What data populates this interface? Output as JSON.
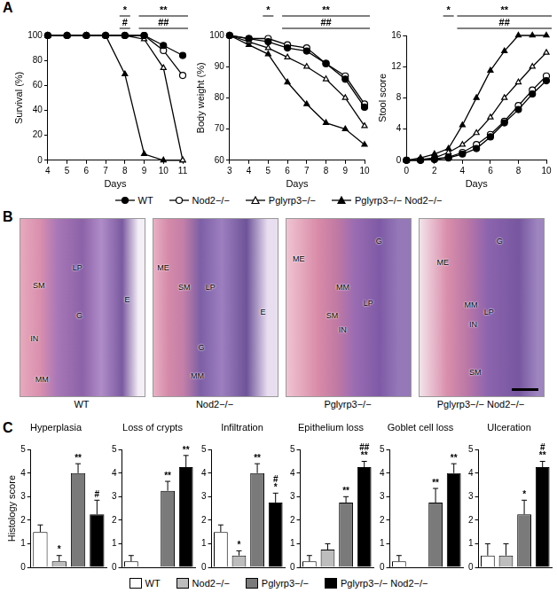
{
  "panel_labels": [
    "A",
    "B",
    "C"
  ],
  "chart_data": [
    {
      "type": "line",
      "x_label": "Days",
      "y_label": "Survival (%)",
      "x": [
        4,
        5,
        6,
        7,
        8,
        9,
        10,
        11
      ],
      "xlim": [
        4,
        11
      ],
      "xticks": [
        4,
        5,
        6,
        7,
        8,
        9,
        10,
        11
      ],
      "ylim": [
        0,
        100
      ],
      "yticks": [
        0,
        20,
        40,
        60,
        80,
        100
      ],
      "grid": false,
      "legend": "bottom",
      "series": [
        {
          "name": "WT",
          "color": "#000000",
          "marker": "circle",
          "values": [
            100,
            100,
            100,
            100,
            100,
            100,
            92,
            84
          ]
        },
        {
          "name": "Nod2−/−",
          "color": "#000000",
          "marker": "open_circle",
          "values": [
            100,
            100,
            100,
            100,
            100,
            100,
            88,
            68
          ]
        },
        {
          "name": "Pglyrp3−/−",
          "color": "#000000",
          "marker": "open_triangle",
          "values": [
            100,
            100,
            100,
            100,
            100,
            97,
            74,
            0
          ]
        },
        {
          "name": "Pglyrp3−/− Nod2−/−",
          "color": "#000000",
          "marker": "triangle",
          "values": [
            100,
            100,
            100,
            100,
            69,
            5,
            0,
            0
          ]
        }
      ],
      "significance": [
        {
          "label": "*",
          "from": 8,
          "to": 8
        },
        {
          "label": "**",
          "from": 9,
          "to": 11
        },
        {
          "label": "#",
          "from": 8,
          "to": 8
        },
        {
          "label": "##",
          "from": 9,
          "to": 11
        }
      ]
    },
    {
      "type": "line",
      "x_label": "Days",
      "y_label": "Body weight (%)",
      "x": [
        3,
        4,
        5,
        6,
        7,
        8,
        9,
        10
      ],
      "xlim": [
        3,
        10
      ],
      "xticks": [
        3,
        4,
        5,
        6,
        7,
        8,
        9,
        10
      ],
      "ylim": [
        60,
        100
      ],
      "yticks": [
        60,
        70,
        80,
        90,
        100
      ],
      "grid": false,
      "series": [
        {
          "name": "WT",
          "color": "#000000",
          "marker": "circle",
          "values": [
            100,
            99,
            98,
            96,
            95,
            91,
            86,
            77
          ]
        },
        {
          "name": "Nod2−/−",
          "color": "#000000",
          "marker": "open_circle",
          "values": [
            100,
            99,
            99,
            97,
            96,
            91,
            87,
            78
          ]
        },
        {
          "name": "Pglyrp3−/−",
          "color": "#000000",
          "marker": "open_triangle",
          "values": [
            100,
            98,
            96,
            93,
            90,
            86,
            80,
            71
          ]
        },
        {
          "name": "Pglyrp3−/− Nod2−/−",
          "color": "#000000",
          "marker": "triangle",
          "values": [
            100,
            97,
            94,
            85,
            78,
            72,
            70,
            65
          ]
        }
      ],
      "significance": [
        {
          "label": "*",
          "from": 5,
          "to": 5
        },
        {
          "label": "**",
          "from": 6,
          "to": 10
        },
        {
          "label": "##",
          "from": 6,
          "to": 10
        }
      ]
    },
    {
      "type": "line",
      "x_label": "Days",
      "y_label": "Stool score",
      "x": [
        0,
        1,
        2,
        3,
        4,
        5,
        6,
        7,
        8,
        9,
        10
      ],
      "xlim": [
        0,
        10
      ],
      "xticks": [
        0,
        2,
        4,
        6,
        8,
        10
      ],
      "ylim": [
        0,
        16
      ],
      "yticks": [
        0,
        4,
        8,
        12,
        16
      ],
      "grid": false,
      "series": [
        {
          "name": "WT",
          "color": "#000000",
          "marker": "circle",
          "values": [
            0,
            0,
            0.1,
            0.3,
            0.8,
            1.5,
            3,
            4.8,
            6.5,
            8.5,
            10.2
          ]
        },
        {
          "name": "Nod2−/−",
          "color": "#000000",
          "marker": "open_circle",
          "values": [
            0,
            0,
            0.2,
            0.4,
            1,
            2,
            3.3,
            5,
            7,
            9,
            10.8
          ]
        },
        {
          "name": "Pglyrp3−/−",
          "color": "#000000",
          "marker": "open_triangle",
          "values": [
            0,
            0.1,
            0.3,
            1,
            2,
            3.5,
            5.5,
            8,
            10,
            12,
            13.8
          ]
        },
        {
          "name": "Pglyrp3−/− Nod2−/−",
          "color": "#000000",
          "marker": "triangle",
          "values": [
            0,
            0.3,
            0.8,
            1.5,
            4.5,
            8,
            11.5,
            14,
            16,
            16,
            16
          ]
        }
      ],
      "significance": [
        {
          "label": "*",
          "from": 3,
          "to": 3
        },
        {
          "label": "**",
          "from": 4,
          "to": 10
        },
        {
          "label": "##",
          "from": 4,
          "to": 10
        }
      ]
    },
    {
      "type": "bar",
      "title": "Hyperplasia",
      "y_label": "Histology score",
      "categories": [
        "WT",
        "Nod2−/−",
        "Pglyrp3−/−",
        "Pglyrp3−/− Nod2−/−"
      ],
      "values": [
        1.5,
        0.25,
        4.0,
        2.25
      ],
      "errors": [
        0.3,
        0.25,
        0.4,
        0.6
      ],
      "annotations": [
        [],
        [
          "*"
        ],
        [
          "**"
        ],
        [
          "#"
        ]
      ],
      "colors": [
        "#ffffff",
        "#bdbdbd",
        "#7a7a7a",
        "#000000"
      ],
      "ylim": [
        0,
        5
      ],
      "yticks": [
        0,
        1,
        2,
        3,
        4,
        5
      ],
      "grid": false,
      "tick_labels": "y",
      "legend": "bottom"
    },
    {
      "type": "bar",
      "title": "Loss of crypts",
      "categories": [
        "WT",
        "Nod2−/−",
        "Pglyrp3−/−",
        "Pglyrp3−/− Nod2−/−"
      ],
      "values": [
        0.25,
        0,
        3.25,
        4.25
      ],
      "errors": [
        0.25,
        0,
        0.4,
        0.5
      ],
      "annotations": [
        [],
        [],
        [
          "**"
        ],
        [
          "**"
        ]
      ],
      "colors": [
        "#ffffff",
        "#bdbdbd",
        "#7a7a7a",
        "#000000"
      ],
      "ylim": [
        0,
        5
      ],
      "yticks": [
        0,
        1,
        2,
        3,
        4,
        5
      ],
      "grid": false,
      "tick_labels": "y"
    },
    {
      "type": "bar",
      "title": "Infiltration",
      "categories": [
        "WT",
        "Nod2−/−",
        "Pglyrp3−/−",
        "Pglyrp3−/− Nod2−/−"
      ],
      "values": [
        1.5,
        0.5,
        4.0,
        2.75
      ],
      "errors": [
        0.3,
        0.2,
        0.4,
        0.4
      ],
      "annotations": [
        [],
        [
          "*"
        ],
        [
          "**"
        ],
        [
          "*",
          "#"
        ]
      ],
      "colors": [
        "#ffffff",
        "#bdbdbd",
        "#7a7a7a",
        "#000000"
      ],
      "ylim": [
        0,
        5
      ],
      "yticks": [
        0,
        1,
        2,
        3,
        4,
        5
      ],
      "grid": false,
      "tick_labels": "y"
    },
    {
      "type": "bar",
      "title": "Epithelium loss",
      "categories": [
        "WT",
        "Nod2−/−",
        "Pglyrp3−/−",
        "Pglyrp3−/− Nod2−/−"
      ],
      "values": [
        0.25,
        0.75,
        2.75,
        4.25
      ],
      "errors": [
        0.25,
        0.25,
        0.25,
        0.25
      ],
      "annotations": [
        [],
        [],
        [
          "**"
        ],
        [
          "**",
          "##"
        ]
      ],
      "colors": [
        "#ffffff",
        "#bdbdbd",
        "#7a7a7a",
        "#000000"
      ],
      "ylim": [
        0,
        5
      ],
      "yticks": [
        0,
        1,
        2,
        3,
        4,
        5
      ],
      "grid": false,
      "tick_labels": "y"
    },
    {
      "type": "bar",
      "title": "Goblet cell loss",
      "categories": [
        "WT",
        "Nod2−/−",
        "Pglyrp3−/−",
        "Pglyrp3−/− Nod2−/−"
      ],
      "values": [
        0.25,
        0,
        2.75,
        4.0
      ],
      "errors": [
        0.25,
        0,
        0.6,
        0.4
      ],
      "annotations": [
        [],
        [],
        [
          "**"
        ],
        [
          "**"
        ]
      ],
      "colors": [
        "#ffffff",
        "#bdbdbd",
        "#7a7a7a",
        "#000000"
      ],
      "ylim": [
        0,
        5
      ],
      "yticks": [
        0,
        1,
        2,
        3,
        4,
        5
      ],
      "grid": false,
      "tick_labels": "y"
    },
    {
      "type": "bar",
      "title": "Ulceration",
      "categories": [
        "WT",
        "Nod2−/−",
        "Pglyrp3−/−",
        "Pglyrp3−/− Nod2−/−"
      ],
      "values": [
        0.5,
        0.5,
        2.25,
        4.25
      ],
      "errors": [
        0.5,
        0.5,
        0.6,
        0.25
      ],
      "annotations": [
        [],
        [],
        [
          "*"
        ],
        [
          "**",
          "#"
        ]
      ],
      "colors": [
        "#ffffff",
        "#bdbdbd",
        "#7a7a7a",
        "#000000"
      ],
      "ylim": [
        0,
        5
      ],
      "yticks": [
        0,
        1,
        2,
        3,
        4,
        5
      ],
      "grid": false,
      "tick_labels": "y"
    }
  ],
  "histology": [
    {
      "caption": "WT",
      "labels": [
        "SM",
        "LP",
        "E",
        "IN",
        "G",
        "MM"
      ]
    },
    {
      "caption": "Nod2−/−",
      "labels": [
        "ME",
        "SM",
        "LP",
        "E",
        "G",
        "MM"
      ]
    },
    {
      "caption": "Pglyrp3−/−",
      "labels": [
        "ME",
        "G",
        "MM",
        "LP",
        "SM",
        "IN"
      ]
    },
    {
      "caption": "Pglyrp3−/− Nod2−/−",
      "labels": [
        "ME",
        "G",
        "MM",
        "LP",
        "IN",
        "SM"
      ]
    }
  ]
}
